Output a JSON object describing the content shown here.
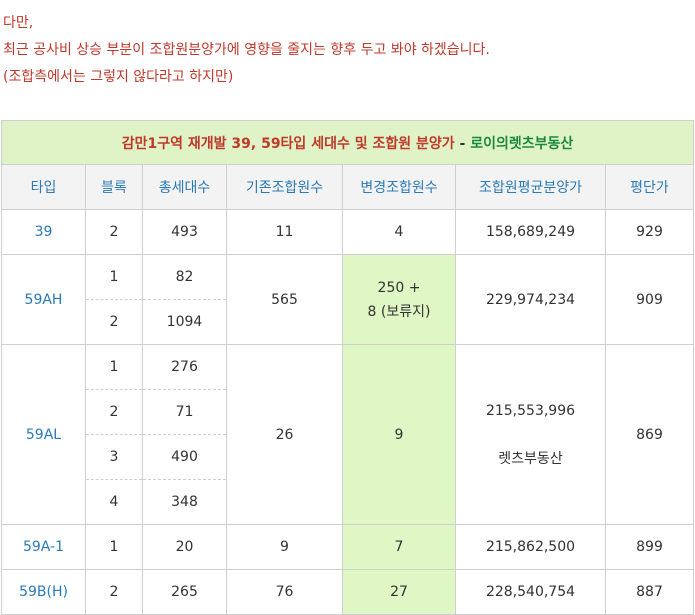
{
  "intro": {
    "line1": "다만,",
    "line2": "최근 공사비 상승 부분이 조합원분양가에 영향을 줄지는 향후 두고 봐야 하겠습니다.",
    "line3": "(조합측에서는 그렇지 않다라고 하지만)"
  },
  "table": {
    "title": "감만1구역 재개발 39, 59타입 세대수 및 조합원 분양가",
    "title_sep": " - ",
    "title_brand": "로이의렛츠부동산",
    "headers": [
      "타입",
      "블록",
      "총세대수",
      "기존조합원수",
      "변경조합원수",
      "조합원평균분양가",
      "평단가"
    ],
    "groups": [
      {
        "type": "39",
        "rows": [
          {
            "block": "2",
            "units": "493"
          }
        ],
        "orig_members": "11",
        "new_members": [
          "4"
        ],
        "avg_price": [
          "158,689,249"
        ],
        "price_per_pyeong": "929"
      },
      {
        "type": "59AH",
        "rows": [
          {
            "block": "1",
            "units": "82"
          },
          {
            "block": "2",
            "units": "1094"
          }
        ],
        "orig_members": "565",
        "new_members": [
          "250 +",
          "8 (보류지)"
        ],
        "avg_price": [
          "229,974,234"
        ],
        "price_per_pyeong": "909"
      },
      {
        "type": "59AL",
        "rows": [
          {
            "block": "1",
            "units": "276"
          },
          {
            "block": "2",
            "units": "71"
          },
          {
            "block": "3",
            "units": "490"
          },
          {
            "block": "4",
            "units": "348"
          }
        ],
        "orig_members": "26",
        "new_members": [
          "9"
        ],
        "avg_price": [
          "215,553,996",
          "렛츠부동산"
        ],
        "price_per_pyeong": "869"
      },
      {
        "type": "59A-1",
        "rows": [
          {
            "block": "1",
            "units": "20"
          }
        ],
        "orig_members": "9",
        "new_members": [
          "7"
        ],
        "avg_price": [
          "215,862,500"
        ],
        "price_per_pyeong": "899"
      },
      {
        "type": "59B(H)",
        "rows": [
          {
            "block": "2",
            "units": "265"
          }
        ],
        "orig_members": "76",
        "new_members": [
          "27"
        ],
        "avg_price": [
          "228,540,754"
        ],
        "price_per_pyeong": "887"
      }
    ]
  }
}
